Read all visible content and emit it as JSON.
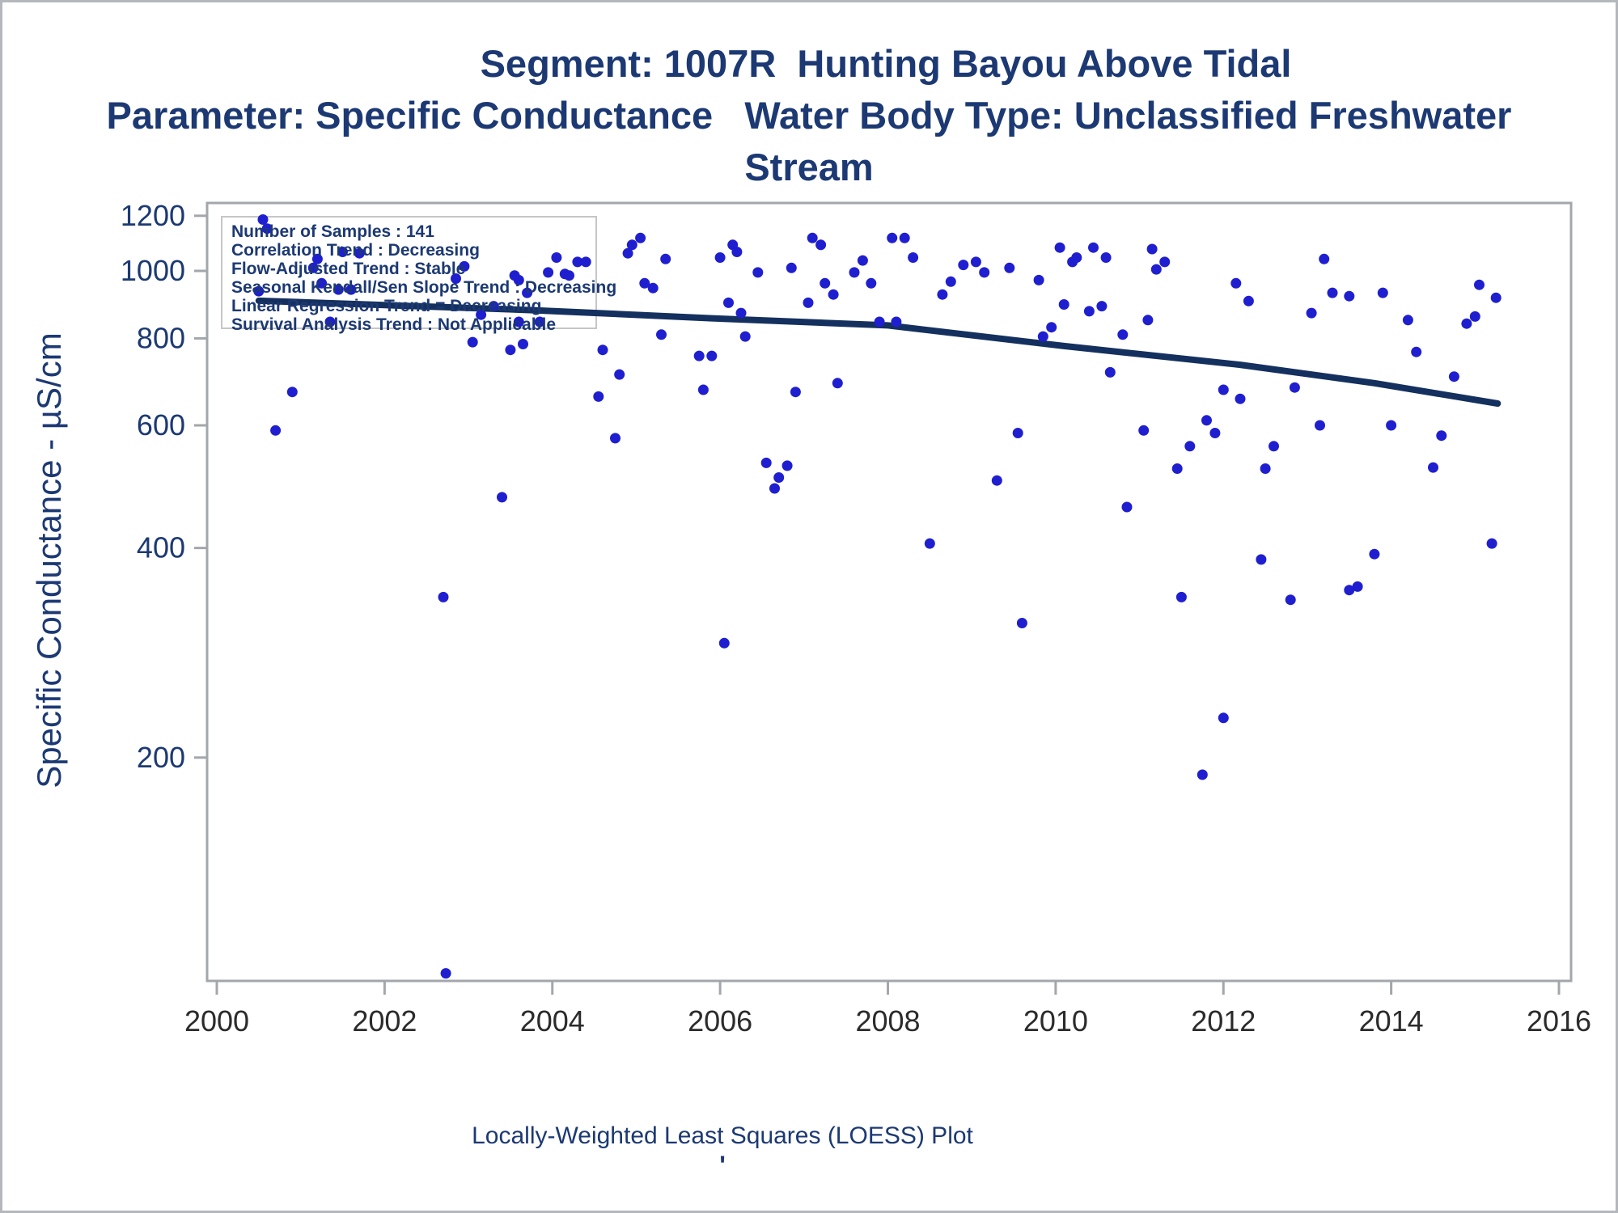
{
  "title": {
    "line1": "Segment: 1007R  Hunting Bayou Above Tidal",
    "line2": "Parameter: Specific Conductance   Water Body Type: Unclassified Freshwater",
    "line3": "Stream"
  },
  "y_axis": {
    "label": "Specific Conductance -  µS/cm",
    "ticks": [
      1200,
      1000,
      800,
      600,
      400,
      200
    ],
    "scale": "log"
  },
  "x_axis": {
    "ticks": [
      2000,
      2002,
      2004,
      2006,
      2008,
      2010,
      2012,
      2014,
      2016
    ]
  },
  "stats_box": {
    "lines": [
      "Number of Samples : 141",
      "Correlation Trend : Decreasing",
      "Flow-Adjusted Trend : Stable",
      "Seasonal Kendall/Sen Slope Trend : Decreasing",
      "Linear Regression Trend = Decreasing",
      "Survival Analysis Trend : Not Applicable"
    ]
  },
  "caption": {
    "text": "Locally-Weighted Least Squares (LOESS) Plot",
    "mark": "'"
  },
  "colors": {
    "title_text": "#1c3973",
    "dot": "#1f1fd0",
    "trend_line": "#14305e",
    "axis": "#a3a7ab",
    "x_tick_text": "#2b2b2b",
    "box_border": "#c6c6c6"
  },
  "chart_data": {
    "type": "scatter",
    "title": "Segment: 1007R Hunting Bayou Above Tidal — Specific Conductance",
    "xlabel": "",
    "ylabel": "Specific Conductance - µS/cm",
    "xlim": [
      2000,
      2016
    ],
    "ylim": [
      96,
      1252
    ],
    "y_scale": "log",
    "x_ticks": [
      2000,
      2002,
      2004,
      2006,
      2008,
      2010,
      2012,
      2014,
      2016
    ],
    "y_ticks": [
      1200,
      1000,
      800,
      600,
      400,
      200
    ],
    "grid": false,
    "legend_position": "inset-top-left",
    "points": [
      [
        2000.55,
        1185
      ],
      [
        2000.6,
        1150
      ],
      [
        2001.5,
        1065
      ],
      [
        2001.7,
        1060
      ],
      [
        2001.2,
        1040
      ],
      [
        2001.15,
        1010
      ],
      [
        2001.25,
        960
      ],
      [
        2001.45,
        940
      ],
      [
        2001.6,
        940
      ],
      [
        2000.5,
        935
      ],
      [
        2001.35,
        845
      ],
      [
        2002.95,
        1015
      ],
      [
        2002.85,
        975
      ],
      [
        2003.55,
        985
      ],
      [
        2003.6,
        970
      ],
      [
        2003.7,
        930
      ],
      [
        2003.3,
        890
      ],
      [
        2003.15,
        865
      ],
      [
        2003.6,
        845
      ],
      [
        2003.05,
        790
      ],
      [
        2003.5,
        770
      ],
      [
        2003.65,
        785
      ],
      [
        2000.9,
        670
      ],
      [
        2000.7,
        590
      ],
      [
        2004.05,
        1045
      ],
      [
        2003.95,
        995
      ],
      [
        2004.15,
        990
      ],
      [
        2004.2,
        985
      ],
      [
        2004.3,
        1030
      ],
      [
        2004.4,
        1030
      ],
      [
        2003.85,
        845
      ],
      [
        2004.9,
        1060
      ],
      [
        2004.95,
        1090
      ],
      [
        2005.05,
        1115
      ],
      [
        2005.35,
        1040
      ],
      [
        2005.1,
        960
      ],
      [
        2005.2,
        945
      ],
      [
        2005.3,
        810
      ],
      [
        2004.6,
        770
      ],
      [
        2004.8,
        710
      ],
      [
        2004.55,
        660
      ],
      [
        2004.75,
        575
      ],
      [
        2006.0,
        1045
      ],
      [
        2006.15,
        1090
      ],
      [
        2006.2,
        1065
      ],
      [
        2006.1,
        900
      ],
      [
        2006.25,
        870
      ],
      [
        2006.3,
        805
      ],
      [
        2005.75,
        755
      ],
      [
        2005.9,
        755
      ],
      [
        2005.8,
        675
      ],
      [
        2006.45,
        995
      ],
      [
        2006.85,
        1010
      ],
      [
        2006.9,
        670
      ],
      [
        2007.05,
        900
      ],
      [
        2007.1,
        1115
      ],
      [
        2007.2,
        1090
      ],
      [
        2007.25,
        960
      ],
      [
        2007.35,
        925
      ],
      [
        2007.4,
        690
      ],
      [
        2007.6,
        995
      ],
      [
        2007.7,
        1035
      ],
      [
        2007.8,
        960
      ],
      [
        2007.9,
        845
      ],
      [
        2008.05,
        1115
      ],
      [
        2008.2,
        1115
      ],
      [
        2008.3,
        1045
      ],
      [
        2008.65,
        925
      ],
      [
        2008.75,
        965
      ],
      [
        2008.9,
        1020
      ],
      [
        2009.05,
        1030
      ],
      [
        2009.15,
        995
      ],
      [
        2009.45,
        1010
      ],
      [
        2009.8,
        970
      ],
      [
        2008.1,
        845
      ],
      [
        2010.05,
        1080
      ],
      [
        2010.2,
        1030
      ],
      [
        2010.25,
        1045
      ],
      [
        2010.45,
        1080
      ],
      [
        2010.6,
        1045
      ],
      [
        2010.1,
        895
      ],
      [
        2010.4,
        875
      ],
      [
        2010.55,
        890
      ],
      [
        2009.95,
        830
      ],
      [
        2009.85,
        805
      ],
      [
        2010.8,
        810
      ],
      [
        2010.65,
        715
      ],
      [
        2011.1,
        850
      ],
      [
        2011.15,
        1075
      ],
      [
        2011.2,
        1005
      ],
      [
        2011.3,
        1030
      ],
      [
        2012.15,
        960
      ],
      [
        2012.0,
        675
      ],
      [
        2011.8,
        610
      ],
      [
        2011.9,
        585
      ],
      [
        2009.55,
        585
      ],
      [
        2011.05,
        590
      ],
      [
        2011.6,
        560
      ],
      [
        2013.2,
        1040
      ],
      [
        2013.3,
        930
      ],
      [
        2013.5,
        920
      ],
      [
        2013.9,
        930
      ],
      [
        2013.05,
        870
      ],
      [
        2014.2,
        850
      ],
      [
        2014.3,
        765
      ],
      [
        2012.3,
        905
      ],
      [
        2015.05,
        955
      ],
      [
        2015.25,
        915
      ],
      [
        2015.0,
        860
      ],
      [
        2014.9,
        840
      ],
      [
        2014.75,
        705
      ],
      [
        2012.85,
        680
      ],
      [
        2012.2,
        655
      ],
      [
        2013.15,
        600
      ],
      [
        2014.0,
        600
      ],
      [
        2014.6,
        580
      ],
      [
        2012.6,
        560
      ],
      [
        2003.4,
        473
      ],
      [
        2002.7,
        340
      ],
      [
        2006.55,
        530
      ],
      [
        2006.8,
        525
      ],
      [
        2006.7,
        505
      ],
      [
        2006.65,
        487
      ],
      [
        2006.05,
        292
      ],
      [
        2009.3,
        500
      ],
      [
        2010.85,
        458
      ],
      [
        2008.5,
        406
      ],
      [
        2011.45,
        520
      ],
      [
        2011.5,
        340
      ],
      [
        2009.6,
        312
      ],
      [
        2012.5,
        520
      ],
      [
        2014.5,
        522
      ],
      [
        2015.2,
        406
      ],
      [
        2013.8,
        392
      ],
      [
        2012.45,
        385
      ],
      [
        2013.5,
        348
      ],
      [
        2013.6,
        352
      ],
      [
        2012.8,
        337
      ],
      [
        2002.73,
        98
      ],
      [
        2012.0,
        228
      ],
      [
        2011.75,
        189
      ]
    ],
    "loess_trend": {
      "x": [
        2000.5,
        2002.0,
        2003.8,
        2005.9,
        2008.0,
        2010.1,
        2012.2,
        2013.8,
        2015.27
      ],
      "y": [
        906,
        893,
        878,
        855,
        835,
        780,
        733,
        690,
        645
      ]
    }
  }
}
